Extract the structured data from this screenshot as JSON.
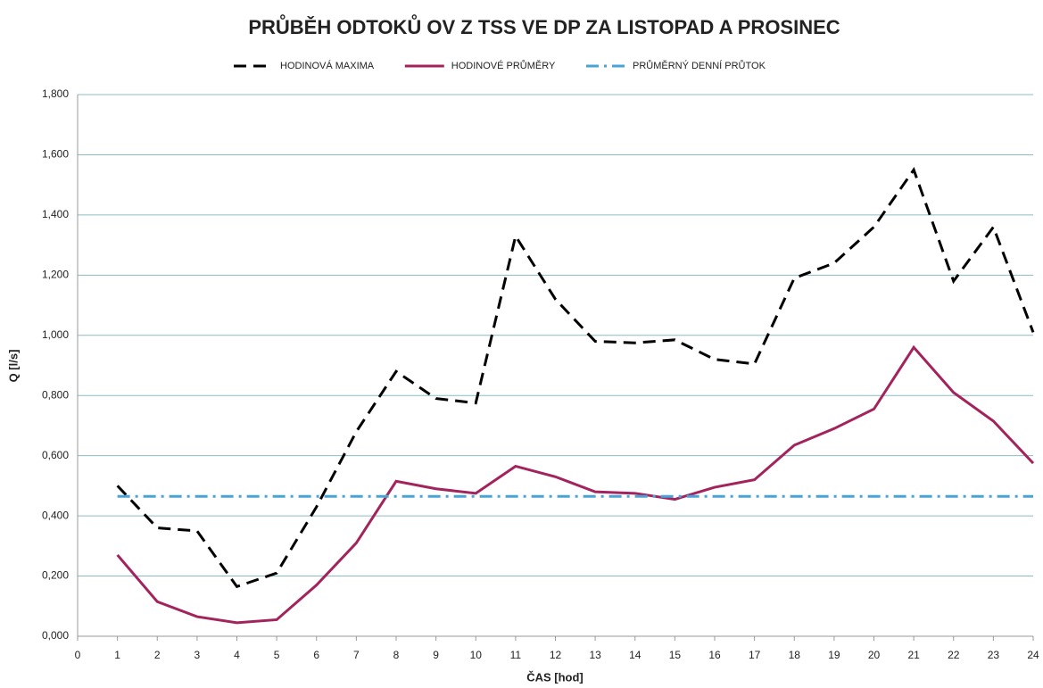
{
  "chart_data": {
    "type": "line",
    "title": "PRŮBĚH ODTOKŮ OV Z TSS VE DP ZA LISTOPAD A PROSINEC",
    "x_label": "ČAS [hod]",
    "y_label": "Q [l/s]",
    "x": [
      1,
      2,
      3,
      4,
      5,
      6,
      7,
      8,
      9,
      10,
      11,
      12,
      13,
      14,
      15,
      16,
      17,
      18,
      19,
      20,
      21,
      22,
      23,
      24
    ],
    "series": [
      {
        "name": "HODINOVÁ MAXIMA",
        "color": "#000000",
        "dash": "dashed",
        "values": [
          0.5,
          0.36,
          0.35,
          0.165,
          0.21,
          0.43,
          0.68,
          0.88,
          0.79,
          0.775,
          1.33,
          1.12,
          0.98,
          0.975,
          0.985,
          0.92,
          0.905,
          1.19,
          1.24,
          1.36,
          1.55,
          1.18,
          1.36,
          1.01
        ]
      },
      {
        "name": "HODINOVÉ PRŮMĚRY",
        "color": "#a3245c",
        "dash": "solid",
        "values": [
          0.27,
          0.115,
          0.065,
          0.045,
          0.055,
          0.17,
          0.31,
          0.515,
          0.49,
          0.475,
          0.565,
          0.53,
          0.48,
          0.475,
          0.455,
          0.495,
          0.52,
          0.635,
          0.69,
          0.755,
          0.96,
          0.81,
          0.715,
          0.575
        ]
      },
      {
        "name": "PRŮMĚRNÝ DENNÍ PRŮTOK",
        "color": "#4aa3d6",
        "dash": "dashdot",
        "values": [
          0.465,
          0.465,
          0.465,
          0.465,
          0.465,
          0.465,
          0.465,
          0.465,
          0.465,
          0.465,
          0.465,
          0.465,
          0.465,
          0.465,
          0.465,
          0.465,
          0.465,
          0.465,
          0.465,
          0.465,
          0.465,
          0.465,
          0.465,
          0.465
        ]
      }
    ],
    "xlim": [
      0,
      24
    ],
    "xticks": [
      0,
      1,
      2,
      3,
      4,
      5,
      6,
      7,
      8,
      9,
      10,
      11,
      12,
      13,
      14,
      15,
      16,
      17,
      18,
      19,
      20,
      21,
      22,
      23,
      24
    ],
    "ylim": [
      0,
      1.8
    ],
    "yticks": [
      {
        "value": 0,
        "label": "0,000"
      },
      {
        "value": 0.2,
        "label": "0,200"
      },
      {
        "value": 0.4,
        "label": "0,400"
      },
      {
        "value": 0.6,
        "label": "0,600"
      },
      {
        "value": 0.8,
        "label": "0,800"
      },
      {
        "value": 1.0,
        "label": "1,000"
      },
      {
        "value": 1.2,
        "label": "1,200"
      },
      {
        "value": 1.4,
        "label": "1,400"
      },
      {
        "value": 1.6,
        "label": "1,600"
      },
      {
        "value": 1.8,
        "label": "1,800"
      }
    ],
    "grid": true,
    "legend": "top"
  }
}
